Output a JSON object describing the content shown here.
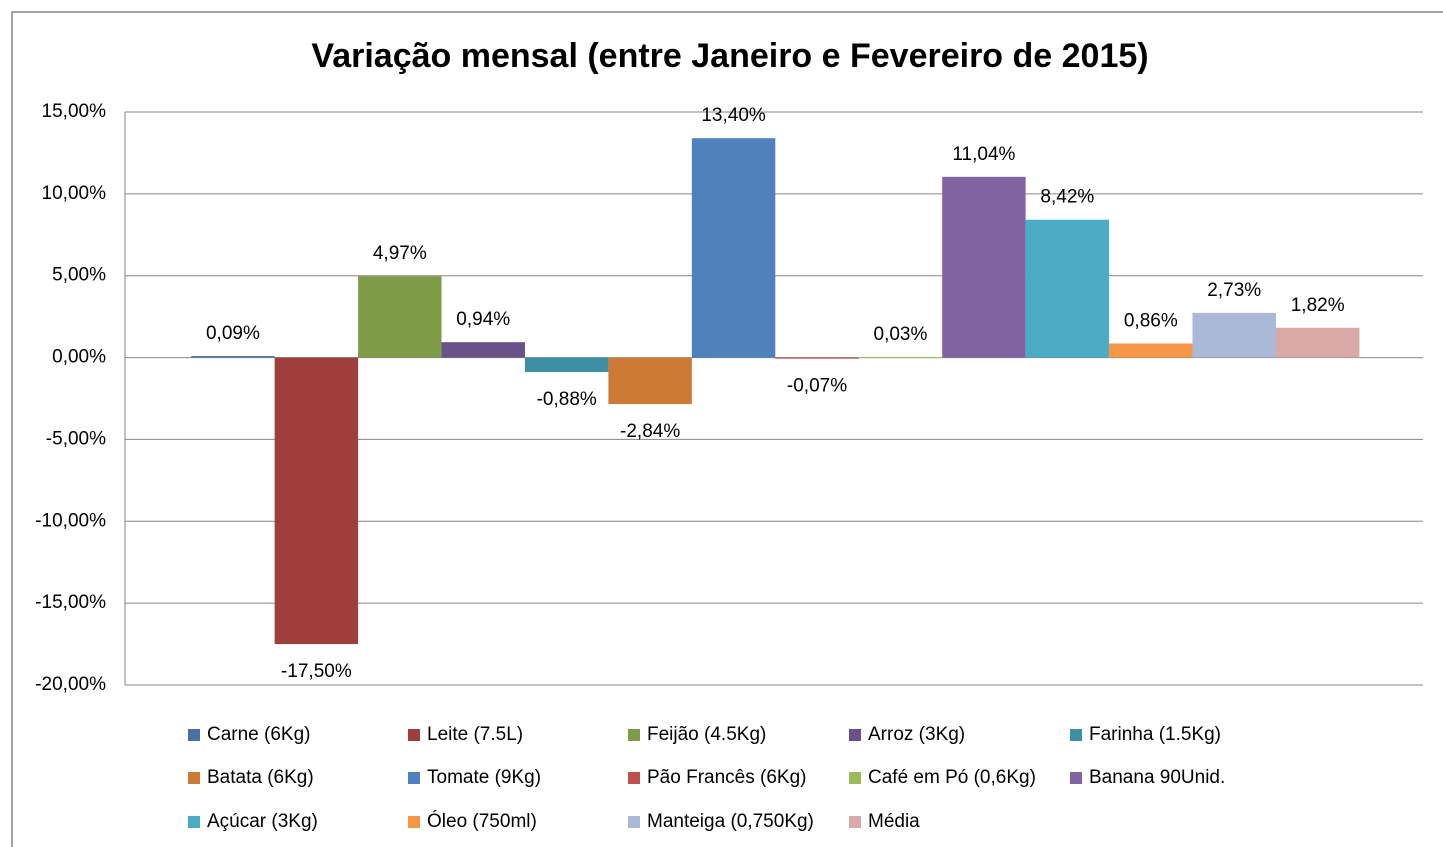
{
  "chart_data": {
    "type": "bar",
    "title": "Variação mensal (entre Janeiro e Fevereiro de 2015)",
    "ylim": [
      -20,
      15
    ],
    "yticks": [
      {
        "value": -20,
        "label": "-20,00%"
      },
      {
        "value": -15,
        "label": "-15,00%"
      },
      {
        "value": -10,
        "label": "-10,00%"
      },
      {
        "value": -5,
        "label": "-5,00%"
      },
      {
        "value": 0,
        "label": "0,00%"
      },
      {
        "value": 5,
        "label": "5,00%"
      },
      {
        "value": 10,
        "label": "10,00%"
      },
      {
        "value": 15,
        "label": "15,00%"
      }
    ],
    "grid": true,
    "legend": "bottom",
    "series": [
      {
        "name": "Carne (6Kg)",
        "color": "#4a6fa5",
        "values": [
          0.09
        ],
        "value_labels": [
          "0,09%"
        ]
      },
      {
        "name": "Leite (7.5L)",
        "color": "#9e3f3c",
        "values": [
          -17.5
        ],
        "value_labels": [
          "-17,50%"
        ]
      },
      {
        "name": "Feijão (4.5Kg)",
        "color": "#7e9b47",
        "values": [
          4.97
        ],
        "value_labels": [
          "4,97%"
        ]
      },
      {
        "name": "Arroz (3Kg)",
        "color": "#6a5189",
        "values": [
          0.94
        ],
        "value_labels": [
          "0,94%"
        ]
      },
      {
        "name": "Farinha (1.5Kg)",
        "color": "#3d8fa6",
        "values": [
          -0.88
        ],
        "value_labels": [
          "-0,88%"
        ]
      },
      {
        "name": "Batata (6Kg)",
        "color": "#cc7a35",
        "values": [
          -2.84
        ],
        "value_labels": [
          "-2,84%"
        ]
      },
      {
        "name": "Tomate (9Kg)",
        "color": "#4f81bd",
        "values": [
          13.4
        ],
        "value_labels": [
          "13,40%"
        ]
      },
      {
        "name": "Pão Francês (6Kg)",
        "color": "#c0504d",
        "values": [
          -0.07
        ],
        "value_labels": [
          "-0,07%"
        ]
      },
      {
        "name": "Café em Pó (0,6Kg)",
        "color": "#9bbb59",
        "values": [
          0.03
        ],
        "value_labels": [
          "0,03%"
        ]
      },
      {
        "name": "Banana 90Unid.",
        "color": "#8064a2",
        "values": [
          11.04
        ],
        "value_labels": [
          "11,04%"
        ]
      },
      {
        "name": "Açúcar (3Kg)",
        "color": "#4bacc6",
        "values": [
          8.42
        ],
        "value_labels": [
          "8,42%"
        ]
      },
      {
        "name": "Óleo (750ml)",
        "color": "#f79646",
        "values": [
          0.86
        ],
        "value_labels": [
          "0,86%"
        ]
      },
      {
        "name": "Manteiga (0,750Kg)",
        "color": "#a9b9d7",
        "values": [
          2.73
        ],
        "value_labels": [
          "2,73%"
        ]
      },
      {
        "name": "Média",
        "color": "#d9a9a8",
        "values": [
          1.82
        ],
        "value_labels": [
          "1,82%"
        ]
      }
    ]
  }
}
